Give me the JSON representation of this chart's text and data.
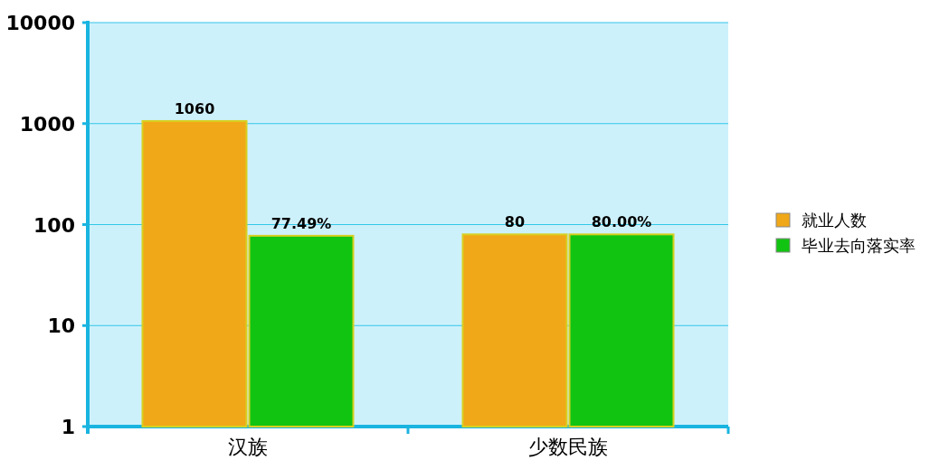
{
  "chart_data": {
    "type": "bar",
    "categories": [
      "汉族",
      "少数民族"
    ],
    "series": [
      {
        "name": "就业人数",
        "color": "#f0a818",
        "values": [
          1060,
          80
        ],
        "value_labels": [
          "1060",
          "80"
        ]
      },
      {
        "name": "毕业去向落实率",
        "color": "#12c412",
        "values": [
          77.49,
          80
        ],
        "value_labels": [
          "77.49%",
          "80.00%"
        ]
      }
    ],
    "log": "y",
    "ylim": [
      1,
      10000
    ],
    "yticks": [
      1,
      10,
      100,
      1000,
      10000
    ],
    "grid": "y",
    "legend": "right"
  }
}
